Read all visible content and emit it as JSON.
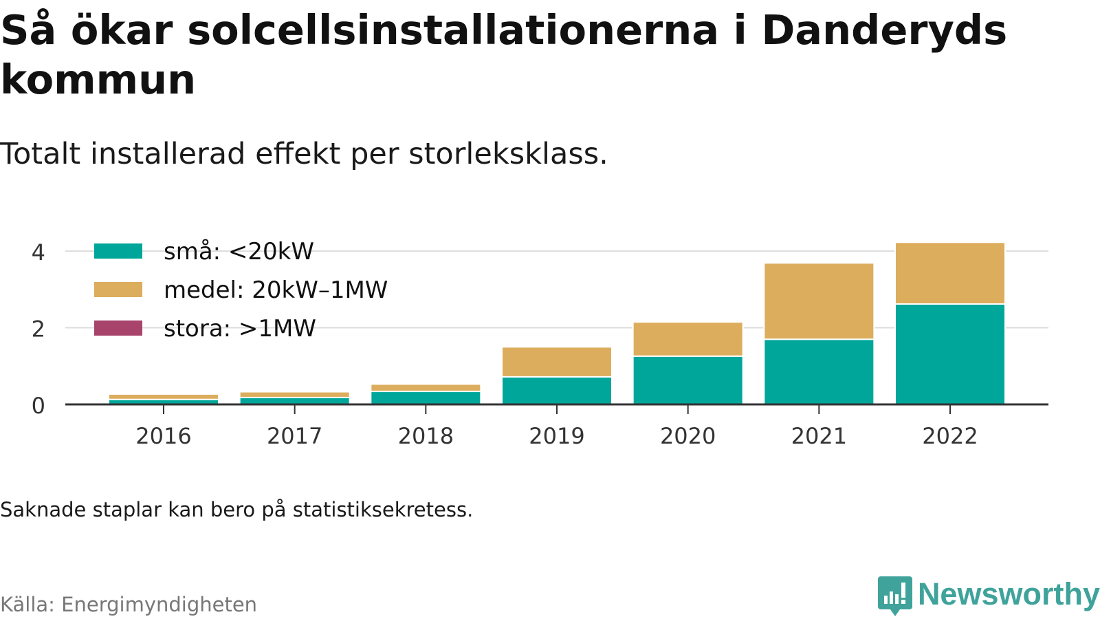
{
  "title": "Så ökar solcellsinstallationerna i Danderyds kommun",
  "subtitle": "Totalt installerad effekt per storleksklass.",
  "note": "Saknade staplar kan bero på statistiksekretess.",
  "source": "Källa: Energimyndigheten",
  "brand": {
    "name": "Newsworthy",
    "icon": "newsworthy-logo-icon",
    "color": "#3fa39b"
  },
  "chart_data": {
    "type": "bar",
    "stacked": true,
    "categories": [
      "2016",
      "2017",
      "2018",
      "2019",
      "2020",
      "2021",
      "2022"
    ],
    "series": [
      {
        "name": "små: <20kW",
        "color": "#00a69a",
        "values": [
          0.13,
          0.18,
          0.34,
          0.72,
          1.26,
          1.7,
          2.62
        ]
      },
      {
        "name": "medel: 20kW–1MW",
        "color": "#dcad5c",
        "values": [
          0.14,
          0.15,
          0.19,
          0.78,
          0.89,
          1.99,
          1.61
        ]
      },
      {
        "name": "stora: >1MW",
        "color": "#a8436b",
        "values": [
          0,
          0,
          0,
          0,
          0,
          0,
          0
        ]
      }
    ],
    "yticks": [
      0,
      2,
      4
    ],
    "ylim": [
      0,
      4.45
    ],
    "grid": true,
    "legend": "top-left"
  }
}
